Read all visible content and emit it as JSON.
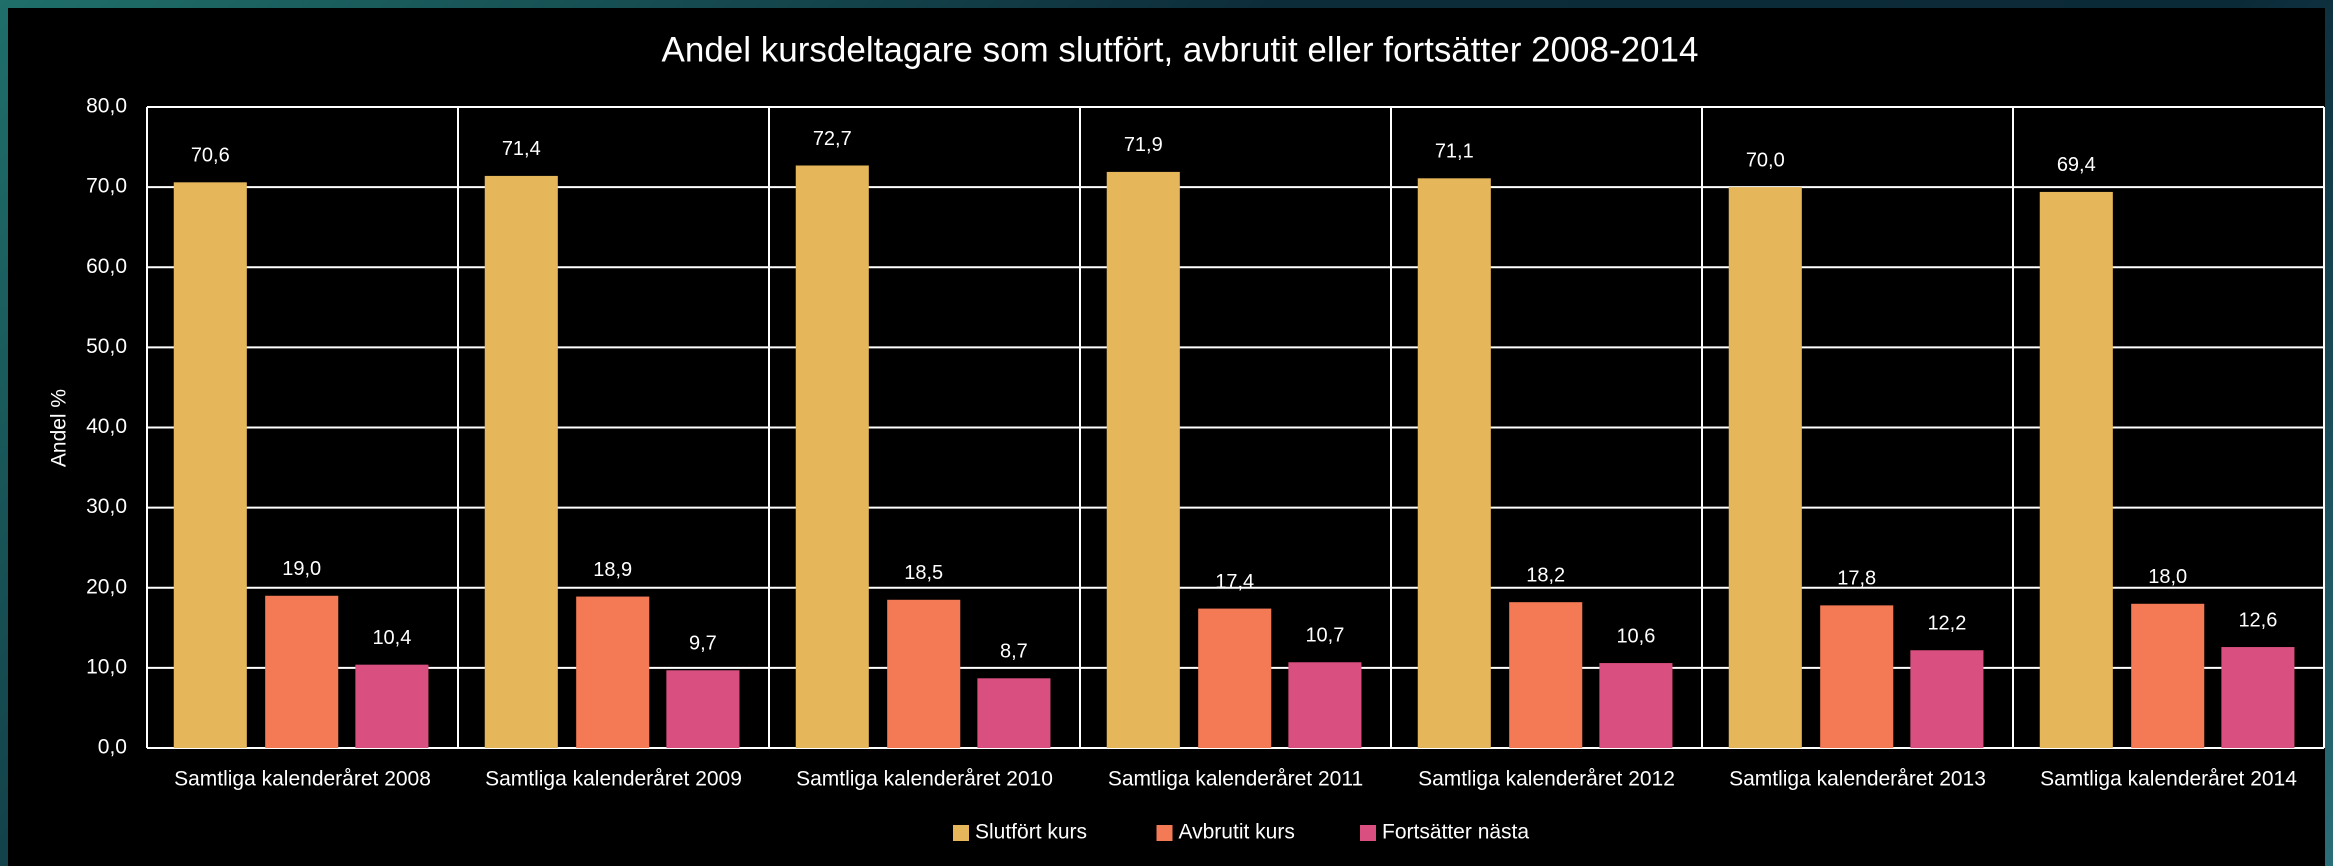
{
  "chart_data": {
    "type": "bar",
    "title": "Andel kursdeltagare som slutfört, avbrutit eller fortsätter 2008-2014",
    "y_label": "Andel %",
    "categories": [
      "Samtliga kalenderåret 2008",
      "Samtliga kalenderåret 2009",
      "Samtliga kalenderåret 2010",
      "Samtliga kalenderåret 2011",
      "Samtliga kalenderåret 2012",
      "Samtliga kalenderåret 2013",
      "Samtliga kalenderåret 2014"
    ],
    "series": [
      {
        "name": "Slutfört kurs",
        "color": "#e6b65a",
        "values": [
          70.6,
          71.4,
          72.7,
          71.9,
          71.1,
          70.0,
          69.4
        ],
        "value_labels": [
          "70,6",
          "71,4",
          "72,7",
          "71,9",
          "71,1",
          "70,0",
          "69,4"
        ]
      },
      {
        "name": "Avbrutit kurs",
        "color": "#f47a56",
        "values": [
          19.0,
          18.9,
          18.5,
          17.4,
          18.2,
          17.8,
          18.0
        ],
        "value_labels": [
          "19,0",
          "18,9",
          "18,5",
          "17,4",
          "18,2",
          "17,8",
          "18,0"
        ]
      },
      {
        "name": "Fortsätter nästa",
        "color": "#d94f80",
        "values": [
          10.4,
          9.7,
          8.7,
          10.7,
          10.6,
          12.2,
          12.6
        ],
        "value_labels": [
          "10,4",
          "9,7",
          "8,7",
          "10,7",
          "10,6",
          "12,2",
          "12,6"
        ]
      }
    ],
    "ylim": [
      0,
      80
    ],
    "yticks": [
      {
        "value": 0,
        "label": "0,0"
      },
      {
        "value": 10,
        "label": "10,0"
      },
      {
        "value": 20,
        "label": "20,0"
      },
      {
        "value": 30,
        "label": "30,0"
      },
      {
        "value": 40,
        "label": "40,0"
      },
      {
        "value": 50,
        "label": "50,0"
      },
      {
        "value": 60,
        "label": "60,0"
      },
      {
        "value": 70,
        "label": "70,0"
      },
      {
        "value": 80,
        "label": "80,0"
      }
    ],
    "grid": true,
    "legend": "bottom"
  }
}
